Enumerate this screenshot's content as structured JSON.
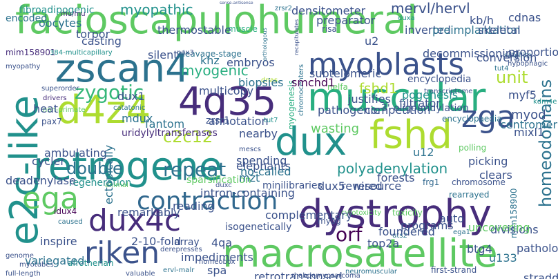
{
  "words": {
    "facioscapulohumeral": "facioscapulohumeral",
    "d4z4": "d4z4",
    "dux": "dux",
    "fshd": "fshd",
    "dystrophy": "dystrophy",
    "retrogene": "retrogene",
    "muscular": "muscular",
    "macrosatellite": "macrosatellite",
    "e2c_like": "e2c-like",
    "zscan4": "zscan4",
    "q435": "4q35",
    "myoblasts": "myoblasts",
    "dux4c": "dux4c",
    "riken": "riken",
    "zga": "zga",
    "ega": "ega",
    "contraction": "contraction",
    "zygotic": "zygotic",
    "repeat": "repeat",
    "c2c12": "c2c12",
    "myopathic": "myopathic",
    "myogenic": "myogenic",
    "unit": "unit",
    "mervl_hervl": "mervl/hervl",
    "double": "double",
    "homeodomains": "homeodomains",
    "orf": "orf",
    "polyadenylation": "polyadenylation",
    "wasting": "wasting",
    "fshd1": "fshd1",
    "myod": "myod",
    "myf5": "myf5",
    "regeneration": "regeneration",
    "uridylyltransferases": "uridylyltransferases",
    "oligouridylation": "3'-oligouridylation",
    "encyclopedia": "encyclopedia",
    "encyclopaedia": "encyclopaedia",
    "fibroadipogenic": "fibroadipogenic",
    "encoded": "encoded",
    "mim158901": "mim158901",
    "multicapillary": "384-multicapillary",
    "cleavage_stage": "cleavage-stage",
    "pax7": "pax7",
    "sparsification": "sparsification",
    "minilibraries": "minilibraries",
    "frg1": "frg1",
    "chromosome": "chromosome",
    "rearrayed": "rearrayed",
    "isogenetically": "isogenetically",
    "array": "array",
    "idux4": "idux4",
    "myog": "myog",
    "uts2": "uts2",
    "ega1": "ega1",
    "zrsr1": "zrsr1",
    "zrsr2": "zrsr2",
    "catatonic": "catatonic",
    "myogenesis": "myogenesis",
    "chromocenters": "chromocenters",
    "satellite": "satellite",
    "hypophagic": "hypophagic",
    "kdm4e": "kdm4e",
    "transcriptome": "transcriptome",
    "muscle": "muscle",
    "risa": "risa",
    "duxa": "duxa",
    "mu_mu": "mu/mu",
    "superorder": "superorder",
    "drivers": "drivers",
    "non_primate": "non-primate",
    "myopathy": "myopathy",
    "mim158900": "mim158900",
    "pathology": "pathology",
    "afrotherian": "afrotherian",
    "myotubes": "myotubes",
    "full_length": "full-length",
    "ervl_malr": "ervl-malr",
    "homeobox": "homeobox",
    "first_strand": "first-strand",
    "neuromuscular": "neuromuscular",
    "rhabdomyosarcoma": "rhabdomyosarcoma",
    "retrotransposed": "retrotransposed",
    "valuable": "valuable",
    "genome": "genome",
    "derepresses": "derepresses",
    "toxicity": "toxicity",
    "cytotoxicity": "cytotoxicity",
    "nelfa": "nelfa",
    "tut4": "tut4",
    "tut7": "tut7",
    "dux1": "dux1",
    "duxc": "duxc",
    "mescs": "mescs",
    "fantom": "fantom",
    "mdux": "mdux",
    "dnas": "dnas",
    "u133": "u133",
    "btg4": "btg4",
    "pax3": "pax3",
    "khz": "khz",
    "embryos": "embryos",
    "ambulating": "ambulating",
    "cycler": "cycler",
    "deadenylase": "deadenylase",
    "animal": "animal",
    "caused": "caused",
    "remarkably": "remarkably",
    "reading": "reading",
    "intron_containing": "intron-containing",
    "complementary": "complementary",
    "spending": "spending",
    "elephants": "elephants",
    "no_called": "no-called",
    "picking": "picking",
    "polling": "polling",
    "foundered": "foundered",
    "programs": "programs",
    "divisions": "divisions",
    "centromeric": "centromeric",
    "mixl1": "mixl1",
    "u12": "u12",
    "auto": "auto",
    "casting": "casting",
    "torpor": "torpor",
    "thermostable": "thermostable",
    "silent": "silent",
    "oocytes": "oocytes",
    "densitometer": "densitometer",
    "preparator": "preparator",
    "inverted": "inverted",
    "preimplantation": "preimplantation",
    "skeletal": "skeletal",
    "kb_h": "kb/h",
    "cdnas": "cdnas",
    "decommissioning": "decommissioning",
    "proportion": "proportion",
    "conversion": "conversion",
    "smchd1": "smchd1",
    "subtelomeric": "subtelomeric",
    "biopsies": "biopsies",
    "multicopy": "multicopy",
    "annotation": "annotation",
    "nearby": "nearby",
    "pathogenic": "pathogenic",
    "competition": "competition",
    "resource": "resource",
    "forests": "forests",
    "rewired": "rewired",
    "clears": "clears",
    "filtrator": "filtrator",
    "justifies": "justifies",
    "pogenesis": "pogenesis",
    "inspire": "inspire",
    "variegated": "variegated",
    "impediments": "impediments",
    "tog_2_10": "2-10-fold",
    "straddles": "straddles",
    "uncovering": "uncovering",
    "ectopically": "ectopically",
    "heat": "heat",
    "spa": "spa",
    "u2": "u2",
    "r4qa": "4qa",
    "top2a": "top2a",
    "dux5": "dux5",
    "mzt": "mzt",
    "undeniably": "sense-antisense",
    "orthologous": "orthologous",
    "recapitulates": "recapitulates"
  }
}
